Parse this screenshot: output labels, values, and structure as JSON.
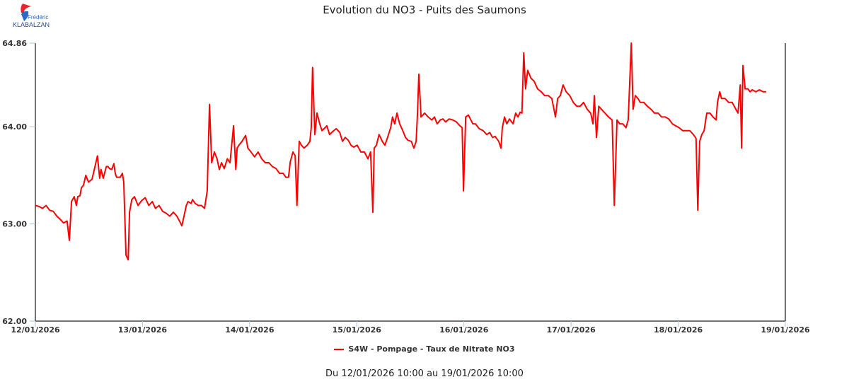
{
  "logo": {
    "line1": "Frédéric",
    "line2": "KLABALZAN"
  },
  "chart_data": {
    "type": "line",
    "title": "Evolution du NO3 - Puits des Saumons",
    "xlabel": "",
    "ylabel": "",
    "x_unit": "hours since 12/01/2026 10:00",
    "xlim": [
      0,
      168
    ],
    "ylim": [
      62.0,
      64.86
    ],
    "yticks": [
      "62.00",
      "63.00",
      "64.00",
      "64.86"
    ],
    "ytick_values": [
      62.0,
      63.0,
      64.0,
      64.86
    ],
    "xticks": [
      "12/01/2026",
      "13/01/2026",
      "14/01/2026",
      "15/01/2026",
      "16/01/2026",
      "17/01/2026",
      "18/01/2026",
      "19/01/2026"
    ],
    "xtick_values": [
      0,
      24,
      48,
      72,
      96,
      120,
      144,
      168
    ],
    "grid": false,
    "legend_position": "bottom",
    "color": "#ff0000",
    "series": [
      {
        "name": "S4W - Pompage - Taux de Nitrate NO3",
        "points": [
          [
            0,
            63.19
          ],
          [
            0.8,
            63.18
          ],
          [
            1.6,
            63.16
          ],
          [
            2.4,
            63.19
          ],
          [
            3.2,
            63.14
          ],
          [
            4.0,
            63.13
          ],
          [
            4.8,
            63.08
          ],
          [
            5.5,
            63.05
          ],
          [
            6.3,
            63.01
          ],
          [
            7.1,
            63.03
          ],
          [
            7.6,
            62.83
          ],
          [
            8.1,
            63.23
          ],
          [
            8.7,
            63.28
          ],
          [
            9.2,
            63.19
          ],
          [
            9.5,
            63.28
          ],
          [
            10.0,
            63.29
          ],
          [
            10.3,
            63.37
          ],
          [
            10.8,
            63.4
          ],
          [
            11.3,
            63.5
          ],
          [
            11.9,
            63.43
          ],
          [
            12.7,
            63.46
          ],
          [
            13.5,
            63.62
          ],
          [
            13.9,
            63.7
          ],
          [
            14.4,
            63.47
          ],
          [
            14.7,
            63.56
          ],
          [
            15.2,
            63.47
          ],
          [
            15.9,
            63.59
          ],
          [
            16.3,
            63.59
          ],
          [
            16.6,
            63.57
          ],
          [
            17.1,
            63.56
          ],
          [
            17.6,
            63.62
          ],
          [
            17.9,
            63.52
          ],
          [
            18.2,
            63.48
          ],
          [
            19.0,
            63.48
          ],
          [
            19.5,
            63.52
          ],
          [
            19.8,
            63.43
          ],
          [
            20.3,
            62.68
          ],
          [
            20.8,
            62.63
          ],
          [
            21.1,
            63.12
          ],
          [
            21.6,
            63.25
          ],
          [
            22.2,
            63.28
          ],
          [
            23.0,
            63.19
          ],
          [
            23.8,
            63.24
          ],
          [
            24.6,
            63.27
          ],
          [
            25.4,
            63.19
          ],
          [
            26.2,
            63.23
          ],
          [
            26.9,
            63.16
          ],
          [
            27.7,
            63.19
          ],
          [
            28.5,
            63.13
          ],
          [
            29.3,
            63.11
          ],
          [
            30.1,
            63.08
          ],
          [
            30.9,
            63.12
          ],
          [
            31.7,
            63.08
          ],
          [
            32.5,
            63.01
          ],
          [
            32.8,
            62.98
          ],
          [
            33.3,
            63.08
          ],
          [
            33.8,
            63.19
          ],
          [
            34.2,
            63.23
          ],
          [
            34.9,
            63.21
          ],
          [
            35.2,
            63.25
          ],
          [
            35.8,
            63.21
          ],
          [
            36.5,
            63.19
          ],
          [
            37.2,
            63.19
          ],
          [
            37.9,
            63.16
          ],
          [
            38.5,
            63.34
          ],
          [
            39.0,
            64.23
          ],
          [
            39.5,
            63.63
          ],
          [
            40.1,
            63.74
          ],
          [
            40.7,
            63.67
          ],
          [
            41.2,
            63.56
          ],
          [
            41.7,
            63.63
          ],
          [
            42.3,
            63.57
          ],
          [
            43.0,
            63.67
          ],
          [
            43.6,
            63.63
          ],
          [
            44.4,
            64.01
          ],
          [
            44.9,
            63.56
          ],
          [
            45.2,
            63.78
          ],
          [
            45.6,
            63.81
          ],
          [
            46.3,
            63.85
          ],
          [
            47.1,
            63.91
          ],
          [
            47.6,
            63.78
          ],
          [
            48.3,
            63.74
          ],
          [
            49.1,
            63.69
          ],
          [
            49.9,
            63.74
          ],
          [
            50.7,
            63.67
          ],
          [
            51.5,
            63.63
          ],
          [
            52.3,
            63.63
          ],
          [
            53.1,
            63.59
          ],
          [
            53.9,
            63.57
          ],
          [
            54.7,
            63.52
          ],
          [
            55.5,
            63.52
          ],
          [
            56.1,
            63.48
          ],
          [
            56.7,
            63.48
          ],
          [
            57.1,
            63.64
          ],
          [
            57.7,
            63.74
          ],
          [
            58.2,
            63.7
          ],
          [
            58.6,
            63.19
          ],
          [
            59.1,
            63.85
          ],
          [
            59.6,
            63.81
          ],
          [
            60.2,
            63.78
          ],
          [
            60.9,
            63.81
          ],
          [
            61.5,
            63.85
          ],
          [
            61.8,
            63.99
          ],
          [
            62.1,
            64.61
          ],
          [
            62.6,
            63.92
          ],
          [
            63.1,
            64.14
          ],
          [
            63.7,
            64.03
          ],
          [
            64.2,
            63.96
          ],
          [
            64.7,
            63.98
          ],
          [
            65.3,
            64.01
          ],
          [
            65.9,
            63.92
          ],
          [
            66.6,
            63.95
          ],
          [
            67.4,
            63.98
          ],
          [
            68.2,
            63.94
          ],
          [
            68.8,
            63.85
          ],
          [
            69.4,
            63.89
          ],
          [
            70.1,
            63.86
          ],
          [
            70.7,
            63.81
          ],
          [
            71.3,
            63.79
          ],
          [
            72.1,
            63.81
          ],
          [
            72.9,
            63.74
          ],
          [
            73.7,
            63.74
          ],
          [
            74.5,
            63.67
          ],
          [
            75.1,
            63.74
          ],
          [
            75.6,
            63.12
          ],
          [
            75.9,
            63.78
          ],
          [
            76.4,
            63.81
          ],
          [
            77.0,
            63.92
          ],
          [
            77.7,
            63.85
          ],
          [
            78.3,
            63.81
          ],
          [
            78.9,
            63.89
          ],
          [
            79.6,
            63.99
          ],
          [
            80.0,
            64.1
          ],
          [
            80.5,
            64.03
          ],
          [
            81.0,
            64.14
          ],
          [
            81.6,
            64.03
          ],
          [
            82.3,
            63.96
          ],
          [
            82.9,
            63.89
          ],
          [
            83.5,
            63.86
          ],
          [
            84.2,
            63.85
          ],
          [
            84.8,
            63.78
          ],
          [
            85.3,
            63.85
          ],
          [
            85.6,
            64.14
          ],
          [
            85.9,
            64.54
          ],
          [
            86.4,
            64.1
          ],
          [
            87.2,
            64.14
          ],
          [
            88.0,
            64.1
          ],
          [
            88.8,
            64.07
          ],
          [
            89.4,
            64.1
          ],
          [
            90.0,
            64.03
          ],
          [
            90.7,
            64.07
          ],
          [
            91.3,
            64.08
          ],
          [
            91.9,
            64.05
          ],
          [
            92.7,
            64.08
          ],
          [
            93.5,
            64.07
          ],
          [
            94.3,
            64.05
          ],
          [
            95.1,
            64.01
          ],
          [
            95.6,
            63.99
          ],
          [
            95.9,
            63.34
          ],
          [
            96.4,
            64.1
          ],
          [
            97.0,
            64.12
          ],
          [
            98.0,
            64.03
          ],
          [
            98.6,
            64.03
          ],
          [
            99.4,
            63.98
          ],
          [
            100.3,
            63.96
          ],
          [
            101.1,
            63.92
          ],
          [
            101.8,
            63.94
          ],
          [
            102.4,
            63.89
          ],
          [
            103.0,
            63.9
          ],
          [
            103.8,
            63.85
          ],
          [
            104.3,
            63.78
          ],
          [
            104.6,
            63.99
          ],
          [
            105.1,
            64.1
          ],
          [
            105.6,
            64.03
          ],
          [
            106.2,
            64.08
          ],
          [
            107.0,
            64.03
          ],
          [
            107.6,
            64.14
          ],
          [
            108.1,
            64.1
          ],
          [
            108.6,
            64.15
          ],
          [
            109.0,
            64.14
          ],
          [
            109.4,
            64.76
          ],
          [
            109.8,
            64.39
          ],
          [
            110.3,
            64.58
          ],
          [
            111.0,
            64.5
          ],
          [
            111.7,
            64.47
          ],
          [
            112.5,
            64.39
          ],
          [
            113.3,
            64.36
          ],
          [
            114.1,
            64.32
          ],
          [
            114.9,
            64.32
          ],
          [
            115.7,
            64.29
          ],
          [
            116.5,
            64.1
          ],
          [
            117.0,
            64.29
          ],
          [
            117.6,
            64.32
          ],
          [
            118.2,
            64.43
          ],
          [
            118.9,
            64.36
          ],
          [
            119.7,
            64.32
          ],
          [
            120.5,
            64.25
          ],
          [
            121.3,
            64.21
          ],
          [
            122.0,
            64.21
          ],
          [
            122.8,
            64.25
          ],
          [
            123.6,
            64.18
          ],
          [
            124.4,
            64.14
          ],
          [
            124.9,
            64.03
          ],
          [
            125.2,
            64.32
          ],
          [
            125.7,
            63.89
          ],
          [
            126.2,
            64.21
          ],
          [
            126.8,
            64.18
          ],
          [
            127.6,
            64.14
          ],
          [
            128.4,
            64.1
          ],
          [
            129.2,
            64.07
          ],
          [
            129.7,
            63.19
          ],
          [
            130.3,
            64.07
          ],
          [
            130.9,
            64.03
          ],
          [
            131.6,
            64.03
          ],
          [
            132.3,
            63.99
          ],
          [
            132.8,
            64.07
          ],
          [
            133.5,
            64.86
          ],
          [
            133.9,
            64.18
          ],
          [
            134.4,
            64.32
          ],
          [
            135.0,
            64.29
          ],
          [
            135.5,
            64.25
          ],
          [
            136.3,
            64.25
          ],
          [
            137.1,
            64.21
          ],
          [
            137.9,
            64.18
          ],
          [
            138.7,
            64.14
          ],
          [
            139.5,
            64.14
          ],
          [
            140.3,
            64.1
          ],
          [
            141.1,
            64.1
          ],
          [
            141.9,
            64.08
          ],
          [
            142.7,
            64.03
          ],
          [
            143.4,
            64.01
          ],
          [
            144.2,
            63.99
          ],
          [
            145.0,
            63.96
          ],
          [
            145.8,
            63.96
          ],
          [
            146.6,
            63.96
          ],
          [
            147.4,
            63.92
          ],
          [
            148.0,
            63.88
          ],
          [
            148.4,
            63.14
          ],
          [
            148.8,
            63.85
          ],
          [
            149.3,
            63.92
          ],
          [
            149.8,
            63.96
          ],
          [
            150.4,
            64.14
          ],
          [
            151.1,
            64.14
          ],
          [
            151.8,
            64.1
          ],
          [
            152.5,
            64.07
          ],
          [
            152.8,
            64.25
          ],
          [
            153.3,
            64.36
          ],
          [
            153.7,
            64.29
          ],
          [
            154.5,
            64.29
          ],
          [
            155.3,
            64.25
          ],
          [
            156.1,
            64.25
          ],
          [
            156.9,
            64.18
          ],
          [
            157.4,
            64.14
          ],
          [
            157.9,
            64.43
          ],
          [
            158.2,
            63.78
          ],
          [
            158.5,
            64.63
          ],
          [
            159.0,
            64.39
          ],
          [
            159.6,
            64.39
          ],
          [
            160.1,
            64.36
          ],
          [
            160.6,
            64.38
          ],
          [
            161.4,
            64.36
          ],
          [
            162.2,
            64.38
          ],
          [
            163.0,
            64.36
          ],
          [
            163.7,
            64.36
          ]
        ]
      }
    ],
    "footer": "Du 12/01/2026 10:00 au 19/01/2026 10:00"
  }
}
